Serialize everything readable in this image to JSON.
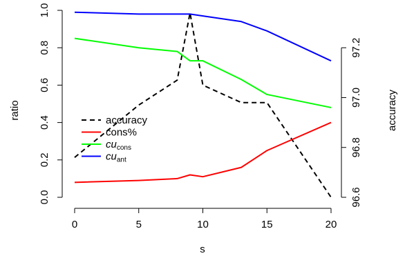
{
  "chart_data": {
    "type": "line",
    "xlabel": "s",
    "ylabel_left": "ratio",
    "ylabel_right": "accuracy",
    "xlim": [
      0,
      20
    ],
    "ylim_left": [
      0,
      1
    ],
    "ylim_right": [
      96.6,
      97.35
    ],
    "x_ticks": [
      "0",
      "5",
      "10",
      "15",
      "20"
    ],
    "y_ticks_left": [
      "0.0",
      "0.2",
      "0.4",
      "0.6",
      "0.8",
      "1.0"
    ],
    "y_ticks_right": [
      "96.6",
      "96.8",
      "97.0",
      "97.2"
    ],
    "grid": false,
    "legend_position": "left-center",
    "series": [
      {
        "name": "accuracy",
        "axis": "right",
        "color": "#000000",
        "dash": true,
        "x": [
          0,
          5,
          8,
          9,
          10,
          13,
          14,
          15,
          20
        ],
        "y": [
          96.76,
          96.97,
          97.07,
          97.34,
          97.05,
          96.98,
          96.98,
          96.98,
          96.6
        ]
      },
      {
        "name": "cons%",
        "axis": "left",
        "color": "#ff0000",
        "x": [
          0,
          5,
          8,
          9,
          10,
          13,
          15,
          20
        ],
        "y": [
          0.08,
          0.09,
          0.1,
          0.12,
          0.11,
          0.16,
          0.25,
          0.4
        ]
      },
      {
        "name": "cu",
        "sub": "cons",
        "axis": "left",
        "color": "#00ff00",
        "x": [
          0,
          5,
          8,
          9,
          10,
          13,
          15,
          20
        ],
        "y": [
          0.85,
          0.8,
          0.78,
          0.73,
          0.73,
          0.63,
          0.55,
          0.48
        ]
      },
      {
        "name": "cu",
        "sub": "ant",
        "axis": "left",
        "color": "#0000ff",
        "x": [
          0,
          5,
          8,
          9,
          10,
          13,
          15,
          20
        ],
        "y": [
          0.99,
          0.98,
          0.98,
          0.98,
          0.97,
          0.94,
          0.89,
          0.73
        ]
      }
    ]
  }
}
